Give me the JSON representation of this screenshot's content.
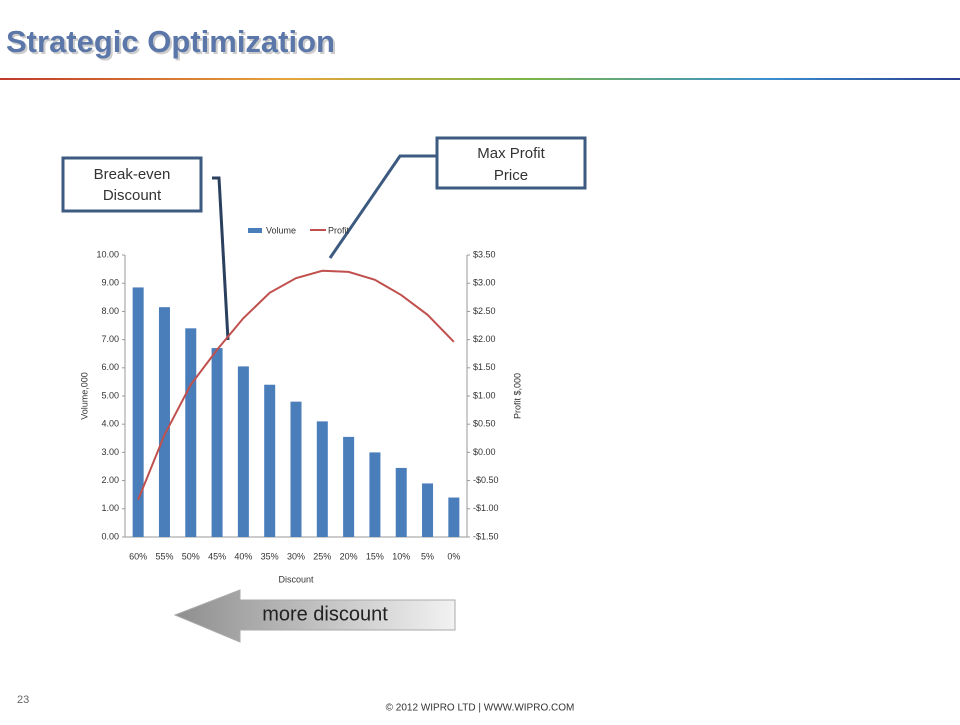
{
  "slide": {
    "title": "Strategic Optimization",
    "page_number": "23",
    "footer": "© 2012 WIPRO LTD | WWW.WIPRO.COM",
    "callouts": [
      {
        "lines": [
          "Break-even",
          "Discount"
        ]
      },
      {
        "lines": [
          "Max Profit",
          "Price"
        ]
      }
    ],
    "arrow_text": "more discount"
  },
  "chart_data": {
    "type": "bar-line",
    "categories": [
      "60%",
      "55%",
      "50%",
      "45%",
      "40%",
      "35%",
      "30%",
      "25%",
      "20%",
      "15%",
      "10%",
      "5%",
      "0%"
    ],
    "series": [
      {
        "name": "Volume",
        "type": "bar",
        "color": "#4a7ebb",
        "values": [
          8.85,
          8.15,
          7.4,
          6.7,
          6.05,
          5.4,
          4.8,
          4.1,
          3.55,
          3.0,
          2.45,
          1.9,
          1.4
        ]
      },
      {
        "name": "Profit",
        "type": "line",
        "axis": "y2",
        "color": "#c0504d",
        "values": [
          -0.84,
          0.31,
          1.2,
          1.82,
          2.38,
          2.83,
          3.09,
          3.22,
          3.2,
          3.06,
          2.79,
          2.44,
          1.96
        ]
      }
    ],
    "x_label": "Discount",
    "y_label": "Volume,000",
    "y2_label": "Profit $,000",
    "ylim": [
      0,
      10
    ],
    "yticks": [
      {
        "value": 0,
        "label": "0.00"
      },
      {
        "value": 1,
        "label": "1.00"
      },
      {
        "value": 2,
        "label": "2.00"
      },
      {
        "value": 3,
        "label": "3.00"
      },
      {
        "value": 4,
        "label": "4.00"
      },
      {
        "value": 5,
        "label": "5.00"
      },
      {
        "value": 6,
        "label": "6.00"
      },
      {
        "value": 7,
        "label": "7.00"
      },
      {
        "value": 8,
        "label": "8.00"
      },
      {
        "value": 9,
        "label": "9.00"
      },
      {
        "value": 10,
        "label": "10.00"
      }
    ],
    "y2lim": [
      -1.5,
      3.5
    ],
    "y2ticks": [
      {
        "value": -1.5,
        "label": "-$1.50"
      },
      {
        "value": -1,
        "label": "-$1.00"
      },
      {
        "value": -0.5,
        "label": "-$0.50"
      },
      {
        "value": 0,
        "label": "$0.00"
      },
      {
        "value": 0.5,
        "label": "$0.50"
      },
      {
        "value": 1,
        "label": "$1.00"
      },
      {
        "value": 1.5,
        "label": "$1.50"
      },
      {
        "value": 2,
        "label": "$2.00"
      },
      {
        "value": 2.5,
        "label": "$2.50"
      },
      {
        "value": 3,
        "label": "$3.00"
      },
      {
        "value": 3.5,
        "label": "$3.50"
      }
    ],
    "grid": false,
    "legend": "top"
  }
}
